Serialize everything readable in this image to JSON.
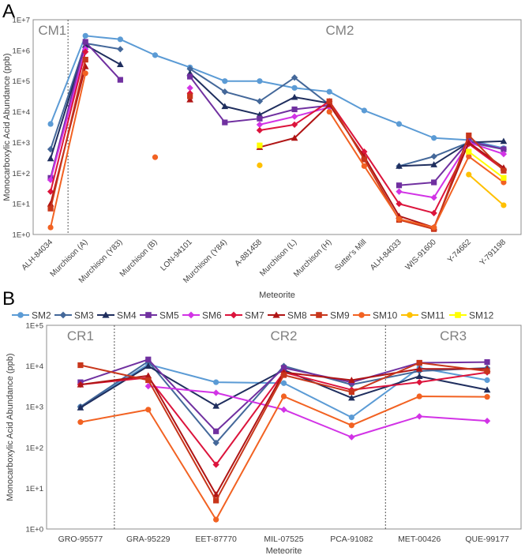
{
  "chart_data": [
    {
      "type": "line",
      "panel_letter": "A",
      "ylabel": "Monocarboxylic Acid Abundance (ppb)",
      "xlabel": "Meteorite",
      "yscale": "log",
      "ylim": [
        1,
        10000000
      ],
      "y_ticks": [
        "1E+0",
        "1E+1",
        "1E+2",
        "1E+3",
        "1E+4",
        "1E+5",
        "1E+6",
        "1E+7"
      ],
      "group_labels": [
        {
          "label": "CM1",
          "at": 0.05
        },
        {
          "label": "CM2",
          "at": 8.3
        }
      ],
      "divider_at": 0.5,
      "categories": [
        "ALH-84034",
        "Murchison (A)",
        "Murchison (Y83)",
        "Murchison (B)",
        "LON-94101",
        "Murchison (Y84)",
        "A-881458",
        "Murchison (L)",
        "Murchison (H)",
        "Sutter's Mill",
        "ALH-84033",
        "WIS-91600",
        "Y-74662",
        "Y-791198"
      ],
      "series": [
        {
          "name": "SM2",
          "values": [
            4000,
            3000000,
            2300000,
            700000,
            280000,
            100000,
            100000,
            60000,
            45000,
            11000,
            4000,
            1400,
            1200,
            650
          ]
        },
        {
          "name": "SM3",
          "values": [
            600,
            1700000,
            1100000,
            null,
            250000,
            45000,
            22000,
            130000,
            17000,
            null,
            170,
            350,
            1000,
            600
          ]
        },
        {
          "name": "SM4",
          "values": [
            300,
            1500000,
            350000,
            null,
            180000,
            15000,
            8000,
            30000,
            19000,
            null,
            170,
            190,
            1000,
            1100
          ]
        },
        {
          "name": "SM5",
          "values": [
            70,
            1900000,
            110000,
            null,
            140000,
            4500,
            6000,
            12000,
            16000,
            null,
            40,
            50,
            1100,
            600
          ]
        },
        {
          "name": "SM6",
          "values": [
            60,
            1100000,
            null,
            null,
            60000,
            null,
            3800,
            7000,
            14000,
            null,
            25,
            16,
            1000,
            420
          ]
        },
        {
          "name": "SM7",
          "values": [
            25,
            900000,
            null,
            null,
            40000,
            null,
            2500,
            3800,
            22000,
            500,
            10,
            5,
            900,
            130
          ]
        },
        {
          "name": "SM8",
          "values": [
            10,
            300000,
            null,
            null,
            25000,
            null,
            700,
            1400,
            17000,
            350,
            4,
            1.7,
            1000,
            150
          ]
        },
        {
          "name": "SM9",
          "values": [
            7,
            500000,
            null,
            null,
            32000,
            null,
            null,
            null,
            22000,
            280,
            3,
            1.5,
            1700,
            120
          ]
        },
        {
          "name": "SM10",
          "values": [
            1.7,
            180000,
            null,
            330,
            null,
            null,
            null,
            null,
            10000,
            170,
            3.2,
            1.7,
            350,
            50
          ]
        },
        {
          "name": "SM11",
          "values": [
            null,
            null,
            null,
            null,
            null,
            null,
            180,
            null,
            null,
            null,
            null,
            null,
            90,
            9
          ]
        },
        {
          "name": "SM12",
          "values": [
            null,
            null,
            null,
            null,
            null,
            null,
            800,
            null,
            null,
            null,
            null,
            null,
            500,
            70
          ]
        }
      ]
    },
    {
      "type": "line",
      "panel_letter": "B",
      "ylabel": "Monocarboxylic Acid Abundance (ppb)",
      "xlabel": "Meteorite",
      "yscale": "log",
      "ylim": [
        1,
        100000
      ],
      "y_ticks": [
        "1E+0",
        "1E+1",
        "1E+2",
        "1E+3",
        "1E+4",
        "1E+5"
      ],
      "group_labels": [
        {
          "label": "CR1",
          "at": 0.0
        },
        {
          "label": "CR2",
          "at": 3.0
        },
        {
          "label": "CR3",
          "at": 5.5
        }
      ],
      "dividers_at": [
        0.5,
        4.5
      ],
      "categories": [
        "GRO-95577",
        "GRA-95229",
        "EET-87770",
        "MIL-07525",
        "PCA-91082",
        "MET-00426",
        "QUE-99177"
      ],
      "series": [
        {
          "name": "SM2",
          "values": [
            1000,
            11000,
            4000,
            3800,
            550,
            9000,
            4500
          ]
        },
        {
          "name": "SM3",
          "values": [
            1000,
            13000,
            130,
            10000,
            3500,
            7500,
            9000
          ]
        },
        {
          "name": "SM4",
          "values": [
            950,
            10000,
            1050,
            8000,
            1650,
            5600,
            2600
          ]
        },
        {
          "name": "SM5",
          "values": [
            4000,
            14500,
            250,
            9000,
            4000,
            12000,
            12500
          ]
        },
        {
          "name": "SM6",
          "values": [
            null,
            3200,
            2200,
            850,
            180,
            580,
            450
          ]
        },
        {
          "name": "SM7",
          "values": [
            3500,
            5200,
            38,
            7000,
            2600,
            4000,
            7000
          ]
        },
        {
          "name": "SM8",
          "values": [
            3500,
            5800,
            7,
            7000,
            4500,
            8500,
            8500
          ]
        },
        {
          "name": "SM9",
          "values": [
            10500,
            4500,
            5,
            6000,
            2300,
            12000,
            7500
          ]
        },
        {
          "name": "SM10",
          "values": [
            420,
            850,
            1.7,
            1800,
            350,
            1800,
            1750
          ]
        }
      ]
    }
  ],
  "legend": [
    {
      "name": "SM2",
      "color": "#5b9bd5",
      "marker": "circle"
    },
    {
      "name": "SM3",
      "color": "#44689a",
      "marker": "diamond"
    },
    {
      "name": "SM4",
      "color": "#1f2e5e",
      "marker": "triangle"
    },
    {
      "name": "SM5",
      "color": "#7030a0",
      "marker": "square"
    },
    {
      "name": "SM6",
      "color": "#d233e6",
      "marker": "diamond"
    },
    {
      "name": "SM7",
      "color": "#dc143c",
      "marker": "diamond"
    },
    {
      "name": "SM8",
      "color": "#b01515",
      "marker": "triangle"
    },
    {
      "name": "SM9",
      "color": "#c8361b",
      "marker": "square"
    },
    {
      "name": "SM10",
      "color": "#f26222",
      "marker": "circle"
    },
    {
      "name": "SM11",
      "color": "#ffc000",
      "marker": "circle"
    },
    {
      "name": "SM12",
      "color": "#ffff00",
      "marker": "square"
    }
  ]
}
